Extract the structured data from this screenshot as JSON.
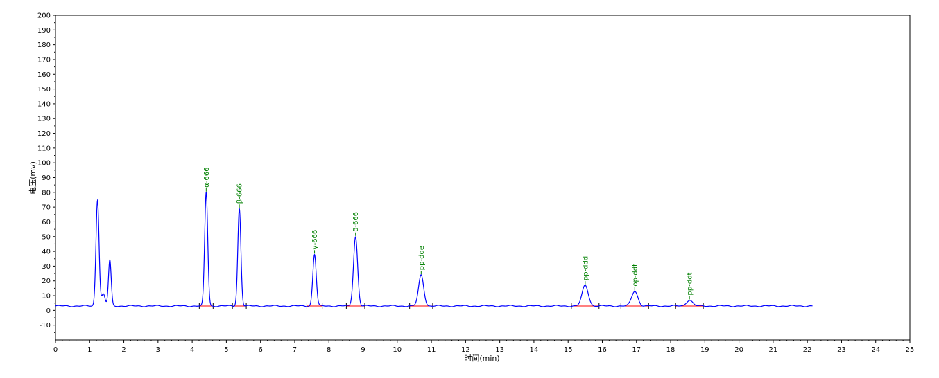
{
  "chart_data": {
    "type": "line",
    "title": "",
    "xlabel": "时间(min)",
    "ylabel": "电压(mv)",
    "xlim": [
      0,
      25
    ],
    "ylim": [
      -20,
      200
    ],
    "x_ticks": [
      0,
      1,
      2,
      3,
      4,
      5,
      6,
      7,
      8,
      9,
      10,
      11,
      12,
      13,
      14,
      15,
      16,
      17,
      18,
      19,
      20,
      21,
      22,
      23,
      24,
      25
    ],
    "y_ticks": [
      -10,
      0,
      10,
      20,
      30,
      40,
      50,
      60,
      70,
      80,
      90,
      100,
      110,
      120,
      130,
      140,
      150,
      160,
      170,
      180,
      190,
      200
    ],
    "baseline": 3,
    "trace_end": 22.15,
    "grid": false,
    "colors": {
      "trace": "#0000ff",
      "baseline": "#ff0000",
      "peak_label": "#008000"
    },
    "peaks": [
      {
        "name": "",
        "rt": 1.23,
        "height": 72,
        "width": 0.045
      },
      {
        "name": "",
        "rt": 1.4,
        "height": 8,
        "width": 0.05
      },
      {
        "name": "",
        "rt": 1.59,
        "height": 31,
        "width": 0.04
      },
      {
        "name": "α-666",
        "rt": 4.41,
        "height": 77,
        "width": 0.045
      },
      {
        "name": "β-666",
        "rt": 5.38,
        "height": 66,
        "width": 0.045
      },
      {
        "name": "γ-666",
        "rt": 7.58,
        "height": 35,
        "width": 0.05
      },
      {
        "name": "δ-666",
        "rt": 8.78,
        "height": 47,
        "width": 0.06
      },
      {
        "name": "pp-dde",
        "rt": 10.7,
        "height": 21,
        "width": 0.075
      },
      {
        "name": "pp-ddd",
        "rt": 15.5,
        "height": 14,
        "width": 0.09
      },
      {
        "name": "op-ddt",
        "rt": 16.95,
        "height": 10,
        "width": 0.09
      },
      {
        "name": "pp-ddt",
        "rt": 18.55,
        "height": 4,
        "width": 0.09
      }
    ]
  }
}
